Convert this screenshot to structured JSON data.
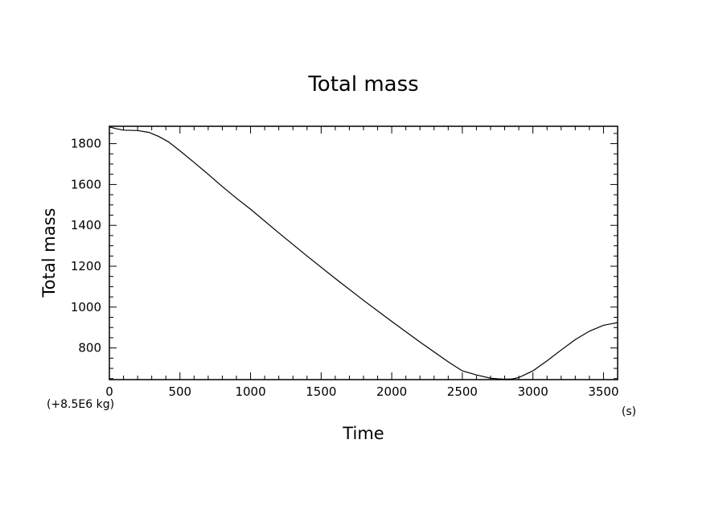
{
  "chart_data": {
    "type": "line",
    "title": "Total mass",
    "xlabel": "Time",
    "ylabel": "Total mass",
    "x_unit": "(s)",
    "y_unit": "(+8.5E6 kg)",
    "xlim": [
      0,
      3600
    ],
    "ylim": [
      645,
      1885
    ],
    "x_ticks": [
      0,
      500,
      1000,
      1500,
      2000,
      2500,
      3000,
      3500
    ],
    "y_ticks": [
      800,
      1000,
      1200,
      1400,
      1600,
      1800
    ],
    "x_tick_labels": [
      "0",
      "500",
      "1000",
      "1500",
      "2000",
      "2500",
      "3000",
      "3500"
    ],
    "y_tick_labels": [
      "800",
      "1000",
      "1200",
      "1400",
      "1600",
      "1800"
    ],
    "grid": false,
    "legend": "none",
    "series": [
      {
        "x": [
          0,
          50,
          100,
          200,
          280,
          350,
          420,
          500,
          600,
          700,
          800,
          900,
          1000,
          1200,
          1400,
          1600,
          1800,
          2000,
          2200,
          2400,
          2500,
          2600,
          2700,
          2750,
          2800,
          2850,
          2900,
          3000,
          3100,
          3200,
          3300,
          3400,
          3500,
          3600
        ],
        "y": [
          1882,
          1873,
          1866,
          1864,
          1855,
          1835,
          1808,
          1765,
          1708,
          1650,
          1590,
          1533,
          1479,
          1363,
          1250,
          1140,
          1033,
          930,
          829,
          732,
          688,
          668,
          652,
          649,
          647,
          648,
          655,
          688,
          737,
          790,
          841,
          882,
          911,
          924
        ]
      }
    ]
  }
}
